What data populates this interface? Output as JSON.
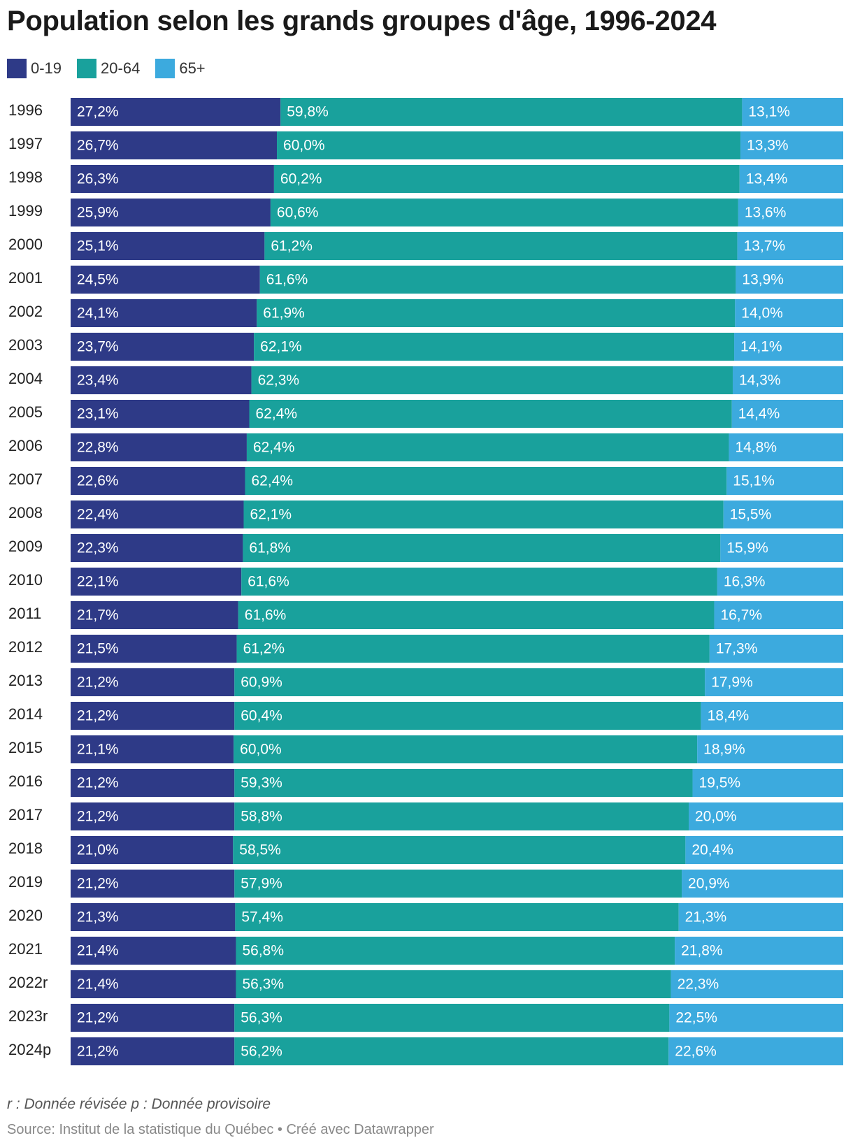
{
  "title": "Population selon les grands groupes d'âge, 1996-2024",
  "legend": [
    {
      "label": "0-19",
      "color": "#2e3a87"
    },
    {
      "label": "20-64",
      "color": "#19a19c"
    },
    {
      "label": "65+",
      "color": "#3caade"
    }
  ],
  "footnote": "r : Donnée révisée p : Donnée provisoire",
  "source": "Source: Institut de la statistique du Québec • Créé avec Datawrapper",
  "chart_data": {
    "type": "bar",
    "stacked": true,
    "orientation": "horizontal",
    "categories": [
      "1996",
      "1997",
      "1998",
      "1999",
      "2000",
      "2001",
      "2002",
      "2003",
      "2004",
      "2005",
      "2006",
      "2007",
      "2008",
      "2009",
      "2010",
      "2011",
      "2012",
      "2013",
      "2014",
      "2015",
      "2016",
      "2017",
      "2018",
      "2019",
      "2020",
      "2021",
      "2022r",
      "2023r",
      "2024p"
    ],
    "series": [
      {
        "name": "0-19",
        "color": "#2e3a87",
        "values": [
          27.2,
          26.7,
          26.3,
          25.9,
          25.1,
          24.5,
          24.1,
          23.7,
          23.4,
          23.1,
          22.8,
          22.6,
          22.4,
          22.3,
          22.1,
          21.7,
          21.5,
          21.2,
          21.2,
          21.1,
          21.2,
          21.2,
          21.0,
          21.2,
          21.3,
          21.4,
          21.4,
          21.2,
          21.2
        ],
        "labels": [
          "27,2%",
          "26,7%",
          "26,3%",
          "25,9%",
          "25,1%",
          "24,5%",
          "24,1%",
          "23,7%",
          "23,4%",
          "23,1%",
          "22,8%",
          "22,6%",
          "22,4%",
          "22,3%",
          "22,1%",
          "21,7%",
          "21,5%",
          "21,2%",
          "21,2%",
          "21,1%",
          "21,2%",
          "21,2%",
          "21,0%",
          "21,2%",
          "21,3%",
          "21,4%",
          "21,4%",
          "21,2%",
          "21,2%"
        ]
      },
      {
        "name": "20-64",
        "color": "#19a19c",
        "values": [
          59.8,
          60.0,
          60.2,
          60.6,
          61.2,
          61.6,
          61.9,
          62.1,
          62.3,
          62.4,
          62.4,
          62.4,
          62.1,
          61.8,
          61.6,
          61.6,
          61.2,
          60.9,
          60.4,
          60.0,
          59.3,
          58.8,
          58.5,
          57.9,
          57.4,
          56.8,
          56.3,
          56.3,
          56.2
        ],
        "labels": [
          "59,8%",
          "60,0%",
          "60,2%",
          "60,6%",
          "61,2%",
          "61,6%",
          "61,9%",
          "62,1%",
          "62,3%",
          "62,4%",
          "62,4%",
          "62,4%",
          "62,1%",
          "61,8%",
          "61,6%",
          "61,6%",
          "61,2%",
          "60,9%",
          "60,4%",
          "60,0%",
          "59,3%",
          "58,8%",
          "58,5%",
          "57,9%",
          "57,4%",
          "56,8%",
          "56,3%",
          "56,3%",
          "56,2%"
        ]
      },
      {
        "name": "65+",
        "color": "#3caade",
        "values": [
          13.1,
          13.3,
          13.4,
          13.6,
          13.7,
          13.9,
          14.0,
          14.1,
          14.3,
          14.4,
          14.8,
          15.1,
          15.5,
          15.9,
          16.3,
          16.7,
          17.3,
          17.9,
          18.4,
          18.9,
          19.5,
          20.0,
          20.4,
          20.9,
          21.3,
          21.8,
          22.3,
          22.5,
          22.6
        ],
        "labels": [
          "13,1%",
          "13,3%",
          "13,4%",
          "13,6%",
          "13,7%",
          "13,9%",
          "14,0%",
          "14,1%",
          "14,3%",
          "14,4%",
          "14,8%",
          "15,1%",
          "15,5%",
          "15,9%",
          "16,3%",
          "16,7%",
          "17,3%",
          "17,9%",
          "18,4%",
          "18,9%",
          "19,5%",
          "20,0%",
          "20,4%",
          "20,9%",
          "21,3%",
          "21,8%",
          "22,3%",
          "22,5%",
          "22,6%"
        ]
      }
    ]
  }
}
